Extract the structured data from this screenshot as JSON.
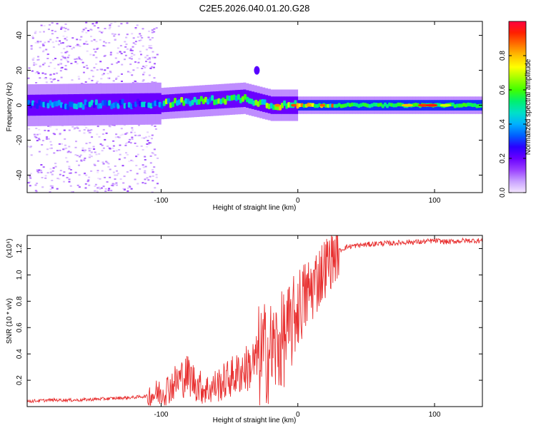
{
  "title": "C2E5.2026.040.01.20.G28",
  "chart_data": [
    {
      "type": "heatmap",
      "xlabel": "Height of straight line (km)",
      "ylabel": "Frequency (Hz)",
      "xlim": [
        -198,
        135
      ],
      "ylim": [
        -50,
        48
      ],
      "xticks": [
        -100,
        0,
        100
      ],
      "yticks": [
        -40,
        -20,
        0,
        20,
        40
      ],
      "colorbar": {
        "label": "Normalized spectral amplitude",
        "range": [
          0.0,
          1.0
        ],
        "ticks": [
          0.0,
          0.2,
          0.4,
          0.6,
          0.8
        ],
        "colors": [
          "#f4e6ff",
          "#c8a0ff",
          "#9a40ff",
          "#6a00ff",
          "#2a00ff",
          "#0060ff",
          "#00b0ff",
          "#00e0c8",
          "#00f070",
          "#40ff00",
          "#a0ff00",
          "#ffff00",
          "#ffc000",
          "#ff7000",
          "#ff2000",
          "#ff0040"
        ]
      },
      "ridge": {
        "x": [
          -198,
          -100,
          -60,
          -40,
          -20,
          0,
          20,
          80,
          100,
          135
        ],
        "center_hz": [
          0,
          1,
          3,
          4,
          0,
          0,
          0,
          0,
          0,
          0
        ]
      },
      "features": [
        {
          "x": -30,
          "hz": 20,
          "label": ""
        }
      ]
    },
    {
      "type": "line",
      "xlabel": "Height of straight line (km)",
      "ylabel": "SNR (10 * v/v)",
      "multiplier": "(x10⁴)",
      "xlim": [
        -198,
        135
      ],
      "ylim": [
        0,
        1.3
      ],
      "xticks": [
        -100,
        0,
        100
      ],
      "yticks": [
        0.2,
        0.4,
        0.6,
        0.8,
        1.0,
        1.2
      ],
      "series": [
        {
          "name": "SNR",
          "color": "#e83030",
          "x": [
            -198,
            -180,
            -160,
            -140,
            -120,
            -110,
            -100,
            -95,
            -90,
            -85,
            -80,
            -75,
            -70,
            -65,
            -60,
            -55,
            -50,
            -45,
            -40,
            -35,
            -30,
            -25,
            -20,
            -15,
            -10,
            -5,
            0,
            5,
            10,
            15,
            20,
            25,
            30,
            35,
            40,
            50,
            60,
            70,
            80,
            90,
            100,
            110,
            120,
            135
          ],
          "y": [
            0.04,
            0.05,
            0.05,
            0.06,
            0.07,
            0.08,
            0.11,
            0.14,
            0.18,
            0.22,
            0.24,
            0.18,
            0.14,
            0.13,
            0.16,
            0.18,
            0.22,
            0.24,
            0.28,
            0.3,
            0.35,
            0.4,
            0.42,
            0.45,
            0.52,
            0.6,
            0.75,
            0.82,
            0.9,
            0.98,
            1.06,
            1.13,
            1.18,
            1.21,
            1.22,
            1.23,
            1.24,
            1.24,
            1.25,
            1.25,
            1.26,
            1.25,
            1.26,
            1.26
          ]
        }
      ]
    }
  ]
}
